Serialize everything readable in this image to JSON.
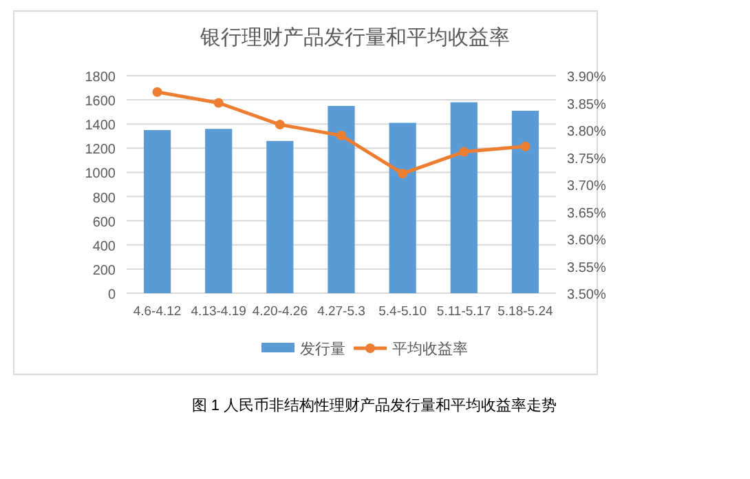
{
  "chart_data": {
    "type": "bar",
    "title": "银行理财产品发行量和平均收益率",
    "categories": [
      "4.6-4.12",
      "4.13-4.19",
      "4.20-4.26",
      "4.27-5.3",
      "5.4-5.10",
      "5.11-5.17",
      "5.18-5.24"
    ],
    "series": [
      {
        "name": "发行量",
        "color": "#5b9bd5",
        "values": [
          1350,
          1360,
          1260,
          1550,
          1410,
          1580,
          1510
        ]
      },
      {
        "name": "平均收益率",
        "type": "line",
        "axis": "y2",
        "color": "#ed7d31",
        "marker": "circle",
        "values": [
          3.87,
          3.85,
          3.81,
          3.79,
          3.72,
          3.76,
          3.77
        ]
      }
    ],
    "ylim": [
      0,
      1800
    ],
    "yticks": [
      0,
      200,
      400,
      600,
      800,
      1000,
      1200,
      1400,
      1600,
      1800
    ],
    "y2lim": [
      3.5,
      3.9
    ],
    "y2ticks": [
      {
        "value": 3.5,
        "label": "3.50%"
      },
      {
        "value": 3.55,
        "label": "3.55%"
      },
      {
        "value": 3.6,
        "label": "3.60%"
      },
      {
        "value": 3.65,
        "label": "3.65%"
      },
      {
        "value": 3.7,
        "label": "3.70%"
      },
      {
        "value": 3.75,
        "label": "3.75%"
      },
      {
        "value": 3.8,
        "label": "3.80%"
      },
      {
        "value": 3.85,
        "label": "3.85%"
      },
      {
        "value": 3.9,
        "label": "3.90%"
      }
    ],
    "grid": "y",
    "legend": "bottom",
    "annotations": [
      "图 1 人民币非结构性理财产品发行量和平均收益率走势"
    ]
  }
}
